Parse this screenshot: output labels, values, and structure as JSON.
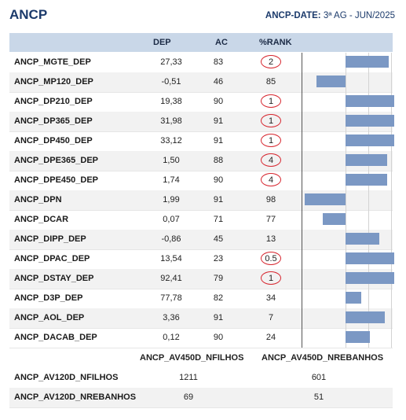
{
  "header": {
    "title": "ANCP",
    "date_label": "ANCP-DATE:",
    "date_value": "3ª AG - JUN/2025"
  },
  "columns": {
    "dep": "DEP",
    "ac": "AC",
    "rank": "%RANK"
  },
  "rows": [
    {
      "name": "ANCP_MGTE_DEP",
      "dep": "27,33",
      "ac": "83",
      "rank": "2",
      "circled": true,
      "bar": 0.5
    },
    {
      "name": "ANCP_MP120_DEP",
      "dep": "-0,51",
      "ac": "46",
      "rank": "85",
      "circled": false,
      "bar": -0.34
    },
    {
      "name": "ANCP_DP210_DEP",
      "dep": "19,38",
      "ac": "90",
      "rank": "1",
      "circled": true,
      "bar": 0.56
    },
    {
      "name": "ANCP_DP365_DEP",
      "dep": "31,98",
      "ac": "91",
      "rank": "1",
      "circled": true,
      "bar": 0.56
    },
    {
      "name": "ANCP_DP450_DEP",
      "dep": "33,12",
      "ac": "91",
      "rank": "1",
      "circled": true,
      "bar": 0.56
    },
    {
      "name": "ANCP_DPE365_DEP",
      "dep": "1,50",
      "ac": "88",
      "rank": "4",
      "circled": true,
      "bar": 0.48
    },
    {
      "name": "ANCP_DPE450_DEP",
      "dep": "1,74",
      "ac": "90",
      "rank": "4",
      "circled": true,
      "bar": 0.48
    },
    {
      "name": "ANCP_DPN",
      "dep": "1,99",
      "ac": "91",
      "rank": "98",
      "circled": false,
      "bar": -0.47
    },
    {
      "name": "ANCP_DCAR",
      "dep": "0,07",
      "ac": "71",
      "rank": "77",
      "circled": false,
      "bar": -0.26
    },
    {
      "name": "ANCP_DIPP_DEP",
      "dep": "-0,86",
      "ac": "45",
      "rank": "13",
      "circled": false,
      "bar": 0.39
    },
    {
      "name": "ANCP_DPAC_DEP",
      "dep": "13,54",
      "ac": "23",
      "rank": "0.5",
      "circled": true,
      "bar": 0.56
    },
    {
      "name": "ANCP_DSTAY_DEP",
      "dep": "92,41",
      "ac": "79",
      "rank": "1",
      "circled": true,
      "bar": 0.56
    },
    {
      "name": "ANCP_D3P_DEP",
      "dep": "77,78",
      "ac": "82",
      "rank": "34",
      "circled": false,
      "bar": 0.18
    },
    {
      "name": "ANCP_AOL_DEP",
      "dep": "3,36",
      "ac": "91",
      "rank": "7",
      "circled": false,
      "bar": 0.45
    },
    {
      "name": "ANCP_DACAB_DEP",
      "dep": "0,12",
      "ac": "90",
      "rank": "24",
      "circled": false,
      "bar": 0.28
    }
  ],
  "sub": {
    "col1": "ANCP_AV450D_NFILHOS",
    "col2": "ANCP_AV450D_NREBANHOS",
    "rows": [
      {
        "name": "ANCP_AV120D_NFILHOS",
        "v1": "1211",
        "v2": "601"
      },
      {
        "name": "ANCP_AV120D_NREBANHOS",
        "v1": "69",
        "v2": "51"
      }
    ]
  },
  "colors": {
    "bar": "#7b98c4",
    "circle": "#d7262f",
    "header_bg": "#c9d7e8",
    "title": "#1b3a6b"
  }
}
